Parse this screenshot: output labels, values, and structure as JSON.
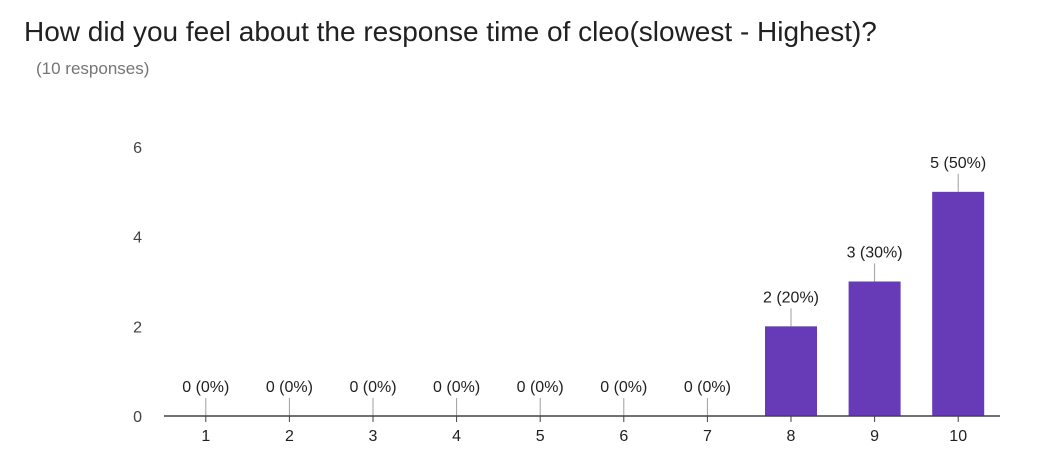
{
  "title": "How did you feel about the response time of cleo(slowest - Highest)?",
  "subtitle": "(10 responses)",
  "chart_data": {
    "type": "bar",
    "title": "How did you feel about the response time of cleo(slowest - Highest)?",
    "categories": [
      "1",
      "2",
      "3",
      "4",
      "5",
      "6",
      "7",
      "8",
      "9",
      "10"
    ],
    "values": [
      0,
      0,
      0,
      0,
      0,
      0,
      0,
      2,
      3,
      5
    ],
    "data_labels": [
      "0 (0%)",
      "0 (0%)",
      "0 (0%)",
      "0 (0%)",
      "0 (0%)",
      "0 (0%)",
      "0 (0%)",
      "2 (20%)",
      "3 (30%)",
      "5 (50%)"
    ],
    "y_ticks": [
      "0",
      "2",
      "4",
      "6"
    ],
    "ylim": [
      0,
      6
    ],
    "xlabel": "",
    "ylabel": "",
    "grid": false,
    "bar_color": "#673ab7"
  }
}
